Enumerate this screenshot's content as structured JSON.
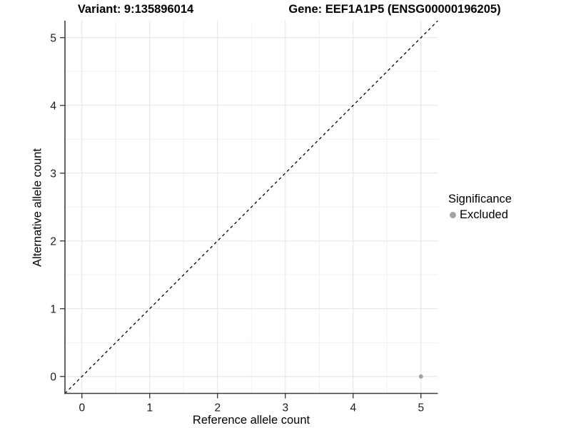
{
  "chart_data": {
    "type": "scatter",
    "title_left": "Variant: 9:135896014",
    "title_right": "Gene: EEF1A1P5 (ENSG00000196205)",
    "xlabel": "Reference allele count",
    "ylabel": "Alternative allele count",
    "xlim": [
      -0.25,
      5.25
    ],
    "ylim": [
      -0.25,
      5.25
    ],
    "x_ticks": [
      0,
      1,
      2,
      3,
      4,
      5
    ],
    "y_ticks": [
      0,
      1,
      2,
      3,
      4,
      5
    ],
    "grid": {
      "major_color": "#e4e4e4",
      "minor_color": "#f0f0f0",
      "minor_ticks": [
        0.5,
        1.5,
        2.5,
        3.5,
        4.5
      ]
    },
    "identity_line": {
      "style": "dashed",
      "color": "#000000",
      "from": [
        -0.25,
        -0.25
      ],
      "to": [
        5.25,
        5.25
      ]
    },
    "series": [
      {
        "name": "Excluded",
        "color": "#a3a3a3",
        "points": [
          [
            5,
            0
          ]
        ]
      }
    ],
    "legend": {
      "title": "Significance",
      "position": "right",
      "entries": [
        {
          "label": "Excluded",
          "color": "#a3a3a3",
          "marker": "circle"
        }
      ]
    },
    "axis": {
      "line_color": "#3d3d3d",
      "tick_color": "#333333",
      "tick_label_color": "#1a1a1a"
    }
  }
}
